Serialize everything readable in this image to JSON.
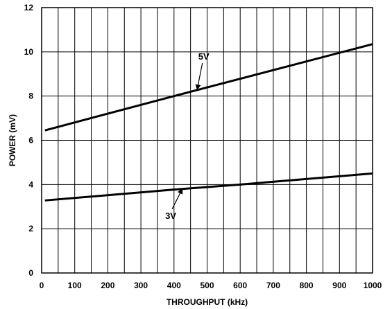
{
  "chart_data": {
    "type": "line",
    "title": "",
    "xlabel": "THROUGHPUT (kHz)",
    "ylabel": "POWER (mV)",
    "xlim": [
      0,
      1000
    ],
    "ylim": [
      0,
      12
    ],
    "x_ticks": [
      0,
      100,
      200,
      300,
      400,
      500,
      600,
      700,
      800,
      900,
      1000
    ],
    "y_ticks": [
      0,
      2,
      4,
      6,
      8,
      10,
      12
    ],
    "x_tick_labels": [
      "0",
      "100",
      "200",
      "300",
      "400",
      "500",
      "600",
      "700",
      "800",
      "900",
      "1000"
    ],
    "y_tick_labels": [
      "0",
      "2",
      "4",
      "6",
      "8",
      "10",
      "12"
    ],
    "x_gridlines": [
      0,
      50,
      100,
      150,
      200,
      250,
      300,
      350,
      400,
      450,
      500,
      550,
      600,
      650,
      700,
      750,
      800,
      850,
      900,
      950,
      1000
    ],
    "y_gridlines": [
      0,
      2,
      4,
      6,
      8,
      10,
      12
    ],
    "grid": true,
    "legend": "none",
    "series": [
      {
        "label": "5V",
        "x": [
          10,
          400,
          1000
        ],
        "y": [
          6.45,
          8.0,
          10.35
        ]
      },
      {
        "label": "3V",
        "x": [
          10,
          400,
          600,
          1000
        ],
        "y": [
          3.28,
          3.77,
          4.0,
          4.5
        ]
      }
    ],
    "annotations": [
      {
        "text": "5V",
        "series": 0,
        "text_at": [
          490,
          9.65
        ],
        "arrow_to": [
          470,
          8.3
        ]
      },
      {
        "text": "3V",
        "series": 1,
        "text_at": [
          390,
          2.45
        ],
        "arrow_to": [
          425,
          3.8
        ]
      }
    ]
  }
}
